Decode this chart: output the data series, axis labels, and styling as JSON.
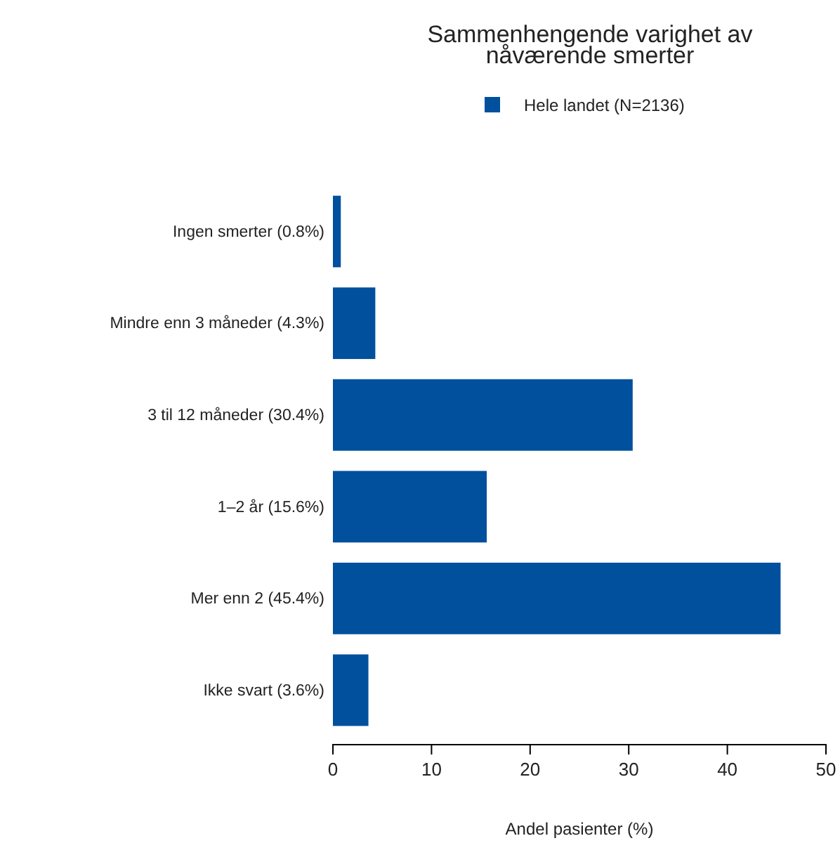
{
  "chart_data": {
    "type": "bar",
    "orientation": "horizontal",
    "title": "Sammenhengende varighet av nåværende smerter",
    "xlabel": "Andel pasienter (%)",
    "categories": [
      "Ingen smerter (0.8%)",
      "Mindre enn 3 måneder (4.3%)",
      "3 til 12 måneder (30.4%)",
      "1–2 år (15.6%)",
      "Mer enn 2 (45.4%)",
      "Ikke svart (3.6%)"
    ],
    "series": [
      {
        "name": "Hele landet (N=2136)",
        "color": "#00509e",
        "values": [
          0.8,
          4.3,
          30.4,
          15.6,
          45.4,
          3.6
        ]
      }
    ],
    "xlim": [
      0,
      50
    ],
    "xticks": [
      0,
      10,
      20,
      30,
      40,
      50
    ],
    "legend": "top"
  }
}
